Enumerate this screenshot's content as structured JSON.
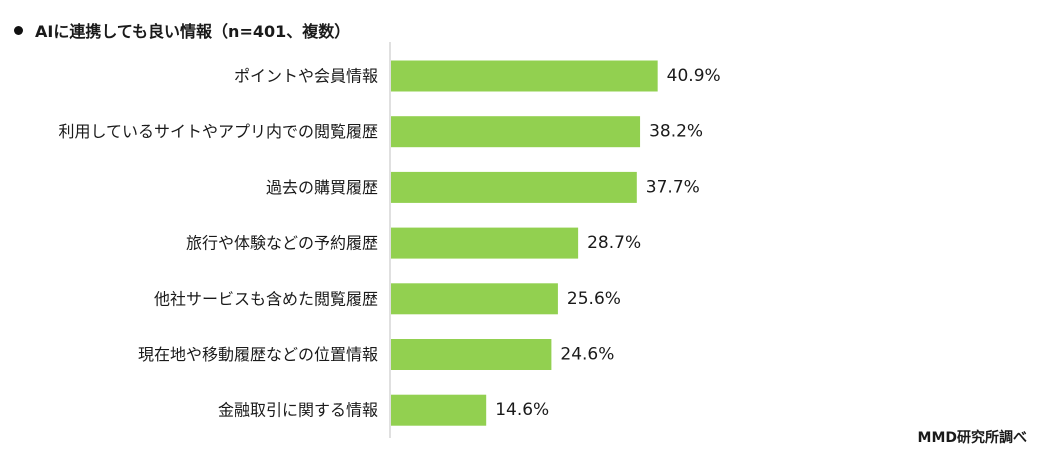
{
  "chart_data": {
    "type": "bar",
    "orientation": "horizontal",
    "title": "AIに連携しても良い情報（n=401、複数）",
    "categories": [
      "ポイントや会員情報",
      "利用しているサイトやアプリ内での閲覧履歴",
      "過去の購買履歴",
      "旅行や体験などの予約履歴",
      "他社サービスも含めた閲覧履歴",
      "現在地や移動履歴などの位置情報",
      "金融取引に関する情報"
    ],
    "values": [
      40.9,
      38.2,
      37.7,
      28.7,
      25.6,
      24.6,
      14.6
    ],
    "value_labels": [
      "40.9%",
      "38.2%",
      "37.7%",
      "28.7%",
      "25.6%",
      "24.6%",
      "14.6%"
    ],
    "unit": "%",
    "xlim": [
      0,
      100
    ],
    "bar_color": "#92d050",
    "grid": false,
    "legend": "none"
  },
  "source": "MMD研究所調べ"
}
